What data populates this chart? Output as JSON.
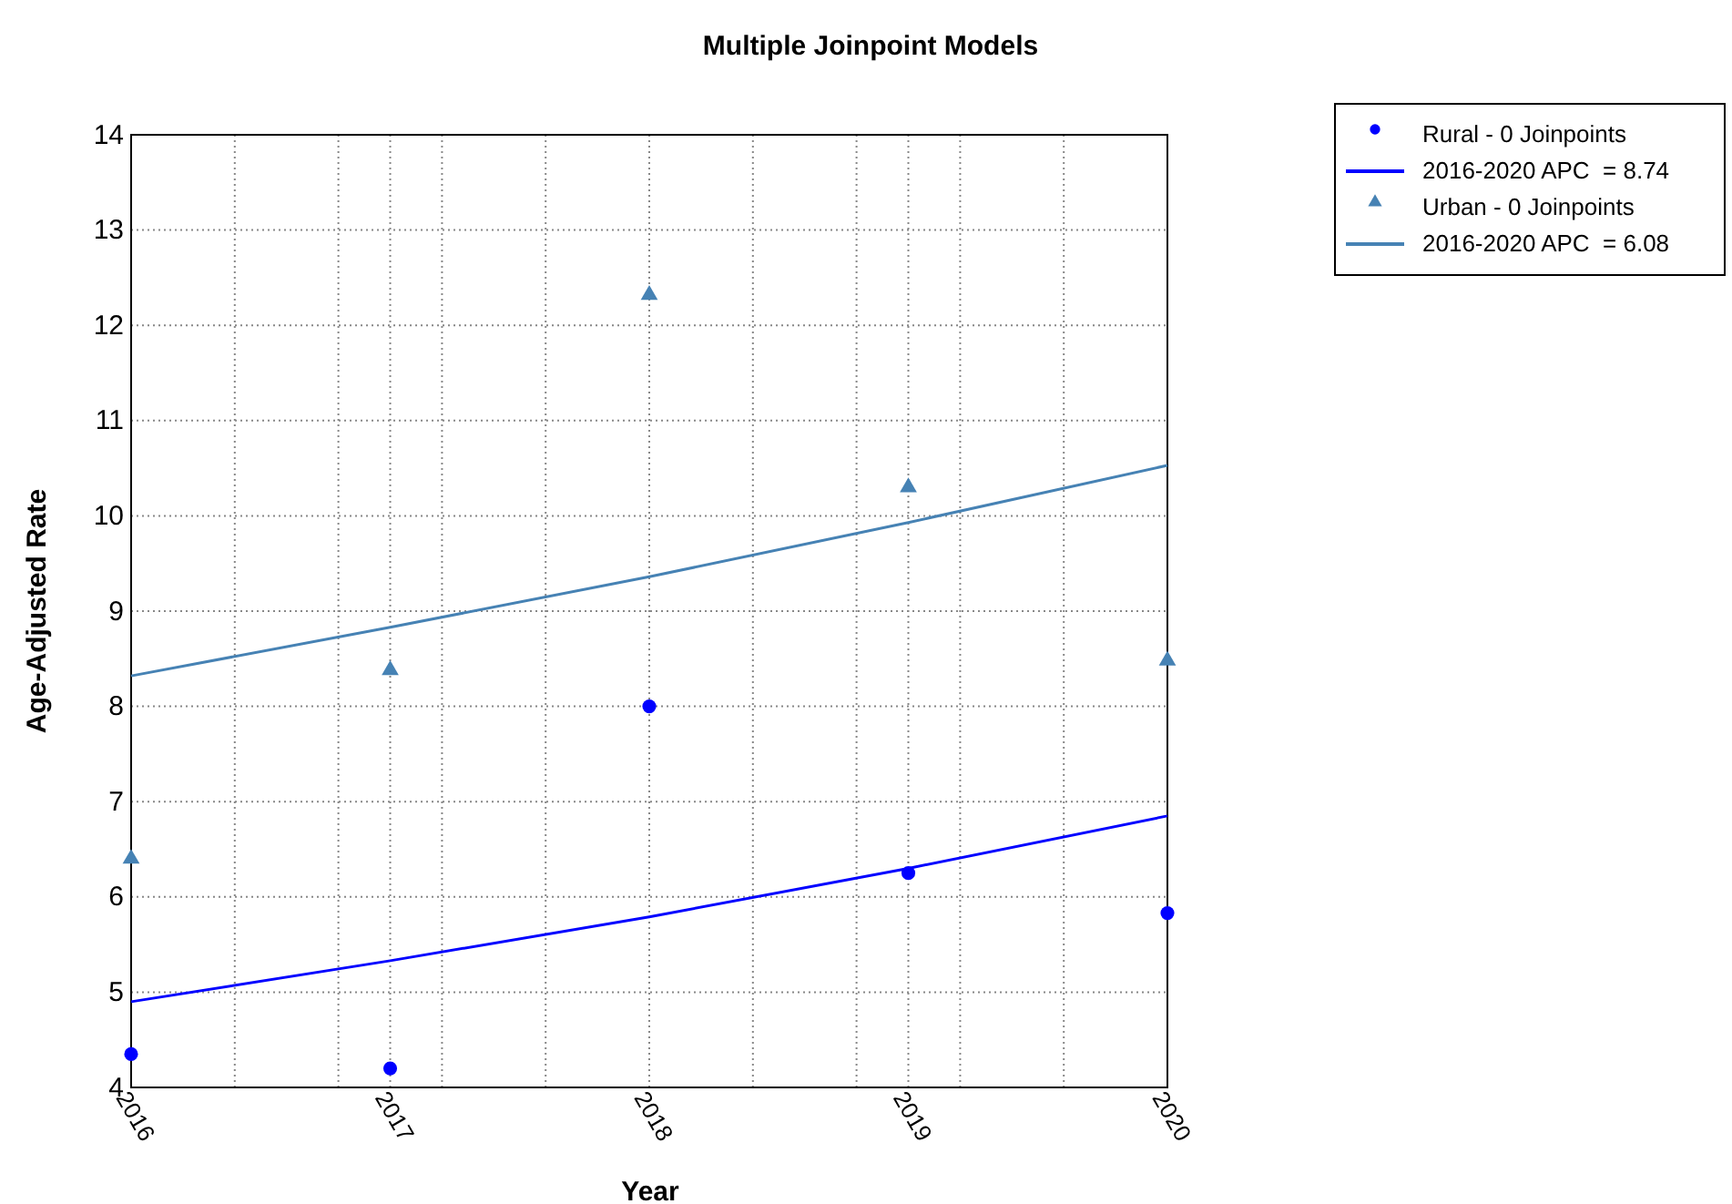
{
  "chart_data": {
    "type": "scatter",
    "title": "Multiple Joinpoint Models",
    "xlabel": "Year",
    "ylabel": "Age-Adjusted Rate",
    "xlim": [
      2016,
      2020
    ],
    "xticks": [
      2016,
      {
        "value": 2016.4,
        "label": null
      },
      {
        "value": 2016.8,
        "label": null
      },
      2017,
      {
        "value": 2017.2,
        "label": null
      },
      {
        "value": 2017.6,
        "label": null
      },
      2018,
      {
        "value": 2018.4,
        "label": null
      },
      {
        "value": 2018.8,
        "label": null
      },
      2019,
      {
        "value": 2019.2,
        "label": null
      },
      {
        "value": 2019.6,
        "label": null
      },
      2020
    ],
    "ylim": [
      4,
      14
    ],
    "yticks": [
      4,
      5,
      6,
      7,
      8,
      9,
      10,
      11,
      12,
      13,
      14
    ],
    "grid": true,
    "legend": "top right",
    "series": [
      {
        "name": "Rural - 0 Joinpoints",
        "marker": "circle",
        "color": "#0000ff",
        "x": [
          2016,
          2017,
          2018,
          2019,
          2020
        ],
        "values": [
          4.35,
          4.2,
          8.0,
          6.25,
          5.83
        ]
      },
      {
        "name": "2016-2020 APC  = 8.74",
        "type": "line",
        "marker": "none",
        "color": "#0000ff",
        "x": [
          2016,
          2017,
          2018,
          2019,
          2020
        ],
        "values": [
          4.9,
          5.33,
          5.79,
          6.3,
          6.85
        ]
      },
      {
        "name": "Urban - 0 Joinpoints",
        "marker": "triangle",
        "color": "#4682b4",
        "x": [
          2016,
          2017,
          2018,
          2019,
          2020
        ],
        "values": [
          6.4,
          8.38,
          12.32,
          10.3,
          8.48
        ]
      },
      {
        "name": "2016-2020 APC  = 6.08",
        "type": "line",
        "marker": "none",
        "color": "#4682b4",
        "x": [
          2016,
          2017,
          2018,
          2019,
          2020
        ],
        "values": [
          8.32,
          8.83,
          9.36,
          9.93,
          10.53
        ]
      }
    ]
  }
}
